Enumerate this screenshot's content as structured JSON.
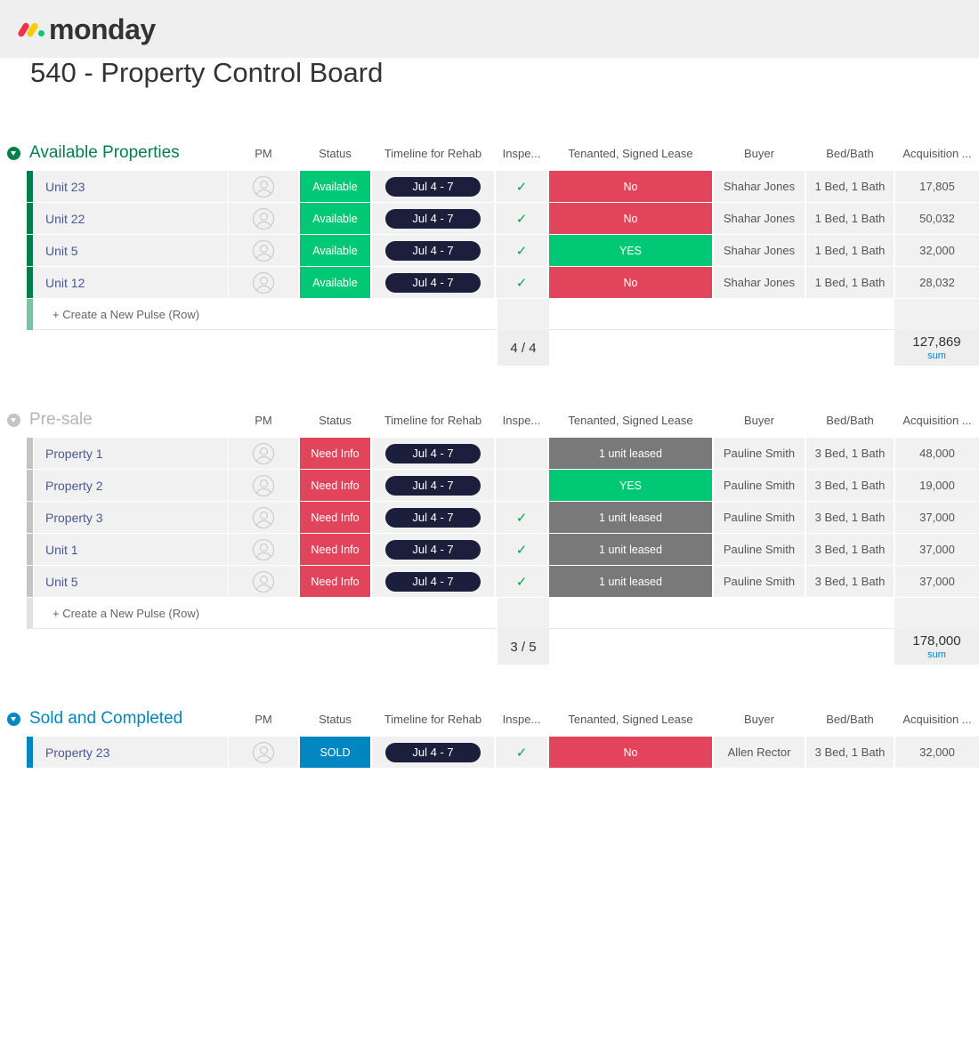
{
  "app": {
    "brand": "monday"
  },
  "board": {
    "title": "540 - Property Control Board"
  },
  "columns": [
    "PM",
    "Status",
    "Timeline for Rehab",
    "Inspe...",
    "Tenanted, Signed Lease",
    "Buyer",
    "Bed/Bath",
    "Acquisition ..."
  ],
  "create_label": "+ Create a New Pulse (Row)",
  "colors": {
    "green_group": "#037f4c",
    "gray_group": "#c4c4c4",
    "blue_group": "#0086c0",
    "status_available": "#00c875",
    "status_need_info": "#e2445c",
    "status_sold": "#0086c0",
    "lease_no": "#e2445c",
    "lease_yes": "#00c875",
    "lease_partial": "#797979",
    "timeline_pill": "#1c1f3b"
  },
  "groups": [
    {
      "title": "Available Properties",
      "color": "#037f4c",
      "title_color": "#037f4c",
      "rows": [
        {
          "name": "Unit 23",
          "status": "Available",
          "status_color": "#00c875",
          "timeline": "Jul 4 - 7",
          "inspection": "✓",
          "lease": "No",
          "lease_color": "#e2445c",
          "buyer": "Shahar Jones",
          "bedbath": "1 Bed, 1 Bath",
          "acquisition": "17,805"
        },
        {
          "name": "Unit 22",
          "status": "Available",
          "status_color": "#00c875",
          "timeline": "Jul 4 - 7",
          "inspection": "✓",
          "lease": "No",
          "lease_color": "#e2445c",
          "buyer": "Shahar Jones",
          "bedbath": "1 Bed, 1 Bath",
          "acquisition": "50,032"
        },
        {
          "name": "Unit 5",
          "status": "Available",
          "status_color": "#00c875",
          "timeline": "Jul 4 - 7",
          "inspection": "✓",
          "lease": "YES",
          "lease_color": "#00c875",
          "buyer": "Shahar Jones",
          "bedbath": "1 Bed, 1 Bath",
          "acquisition": "32,000"
        },
        {
          "name": "Unit 12",
          "status": "Available",
          "status_color": "#00c875",
          "timeline": "Jul 4 - 7",
          "inspection": "✓",
          "lease": "No",
          "lease_color": "#e2445c",
          "buyer": "Shahar Jones",
          "bedbath": "1 Bed, 1 Bath",
          "acquisition": "28,032"
        }
      ],
      "footer": {
        "inspection": "4 / 4",
        "acquisition_sum": "127,869",
        "sum_label": "sum"
      }
    },
    {
      "title": "Pre-sale",
      "color": "#c4c4c4",
      "title_color": "#b5b5b5",
      "rows": [
        {
          "name": "Property 1",
          "status": "Need Info",
          "status_color": "#e2445c",
          "timeline": "Jul 4 - 7",
          "inspection": "",
          "lease": "1 unit leased",
          "lease_color": "#797979",
          "buyer": "Pauline Smith",
          "bedbath": "3 Bed, 1 Bath",
          "acquisition": "48,000"
        },
        {
          "name": "Property 2",
          "status": "Need Info",
          "status_color": "#e2445c",
          "timeline": "Jul 4 - 7",
          "inspection": "",
          "lease": "YES",
          "lease_color": "#00c875",
          "buyer": "Pauline Smith",
          "bedbath": "3 Bed, 1 Bath",
          "acquisition": "19,000"
        },
        {
          "name": "Property 3",
          "status": "Need Info",
          "status_color": "#e2445c",
          "timeline": "Jul 4 - 7",
          "inspection": "✓",
          "lease": "1 unit leased",
          "lease_color": "#797979",
          "buyer": "Pauline Smith",
          "bedbath": "3 Bed, 1 Bath",
          "acquisition": "37,000"
        },
        {
          "name": "Unit 1",
          "status": "Need Info",
          "status_color": "#e2445c",
          "timeline": "Jul 4 - 7",
          "inspection": "✓",
          "lease": "1 unit leased",
          "lease_color": "#797979",
          "buyer": "Pauline Smith",
          "bedbath": "3 Bed, 1 Bath",
          "acquisition": "37,000"
        },
        {
          "name": "Unit 5",
          "status": "Need Info",
          "status_color": "#e2445c",
          "timeline": "Jul 4 - 7",
          "inspection": "✓",
          "lease": "1 unit leased",
          "lease_color": "#797979",
          "buyer": "Pauline Smith",
          "bedbath": "3 Bed, 1 Bath",
          "acquisition": "37,000"
        }
      ],
      "footer": {
        "inspection": "3 / 5",
        "acquisition_sum": "178,000",
        "sum_label": "sum"
      }
    },
    {
      "title": "Sold and Completed",
      "color": "#0086c0",
      "title_color": "#0086c0",
      "rows": [
        {
          "name": "Property 23",
          "status": "SOLD",
          "status_color": "#0086c0",
          "timeline": "Jul 4 - 7",
          "inspection": "✓",
          "lease": "No",
          "lease_color": "#e2445c",
          "buyer": "Allen Rector",
          "bedbath": "3 Bed, 1 Bath",
          "acquisition": "32,000"
        }
      ]
    }
  ]
}
